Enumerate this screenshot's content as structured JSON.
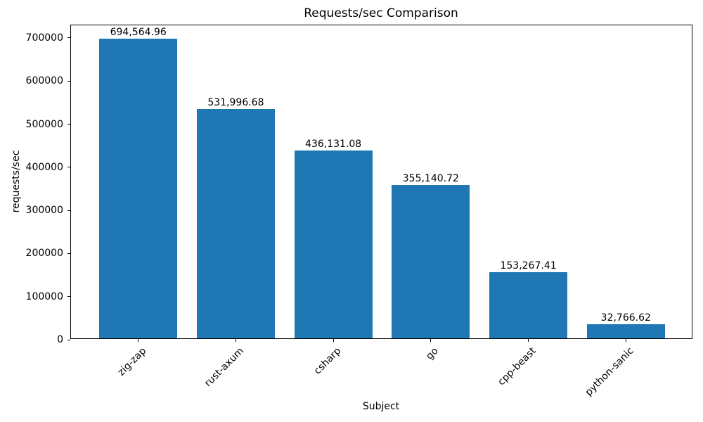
{
  "figure": {
    "background": "#ffffff",
    "bar_color": "#1f77b4",
    "spine_color": "#000000",
    "text_color": "#000000"
  },
  "chart_data": {
    "type": "bar",
    "title": "Requests/sec Comparison",
    "xlabel": "Subject",
    "ylabel": "requests/sec",
    "categories": [
      "zig-zap",
      "rust-axum",
      "csharp",
      "go",
      "cpp-beast",
      "python-sanic"
    ],
    "values": [
      694564.96,
      531996.68,
      436131.08,
      355140.72,
      153267.41,
      32766.62
    ],
    "value_labels": [
      "694,564.96",
      "531,996.68",
      "436,131.08",
      "355,140.72",
      "153,267.41",
      "32,766.62"
    ],
    "bar_width_fraction": 0.8,
    "xlim": [
      -0.69,
      5.69
    ],
    "ylim": [
      0,
      729293
    ],
    "yticks": [
      0,
      100000,
      200000,
      300000,
      400000,
      500000,
      600000,
      700000
    ],
    "ytick_labels": [
      "0",
      "100000",
      "200000",
      "300000",
      "400000",
      "500000",
      "600000",
      "700000"
    ],
    "xtick_label_rotation_deg": 45,
    "grid": false,
    "legend": null
  }
}
